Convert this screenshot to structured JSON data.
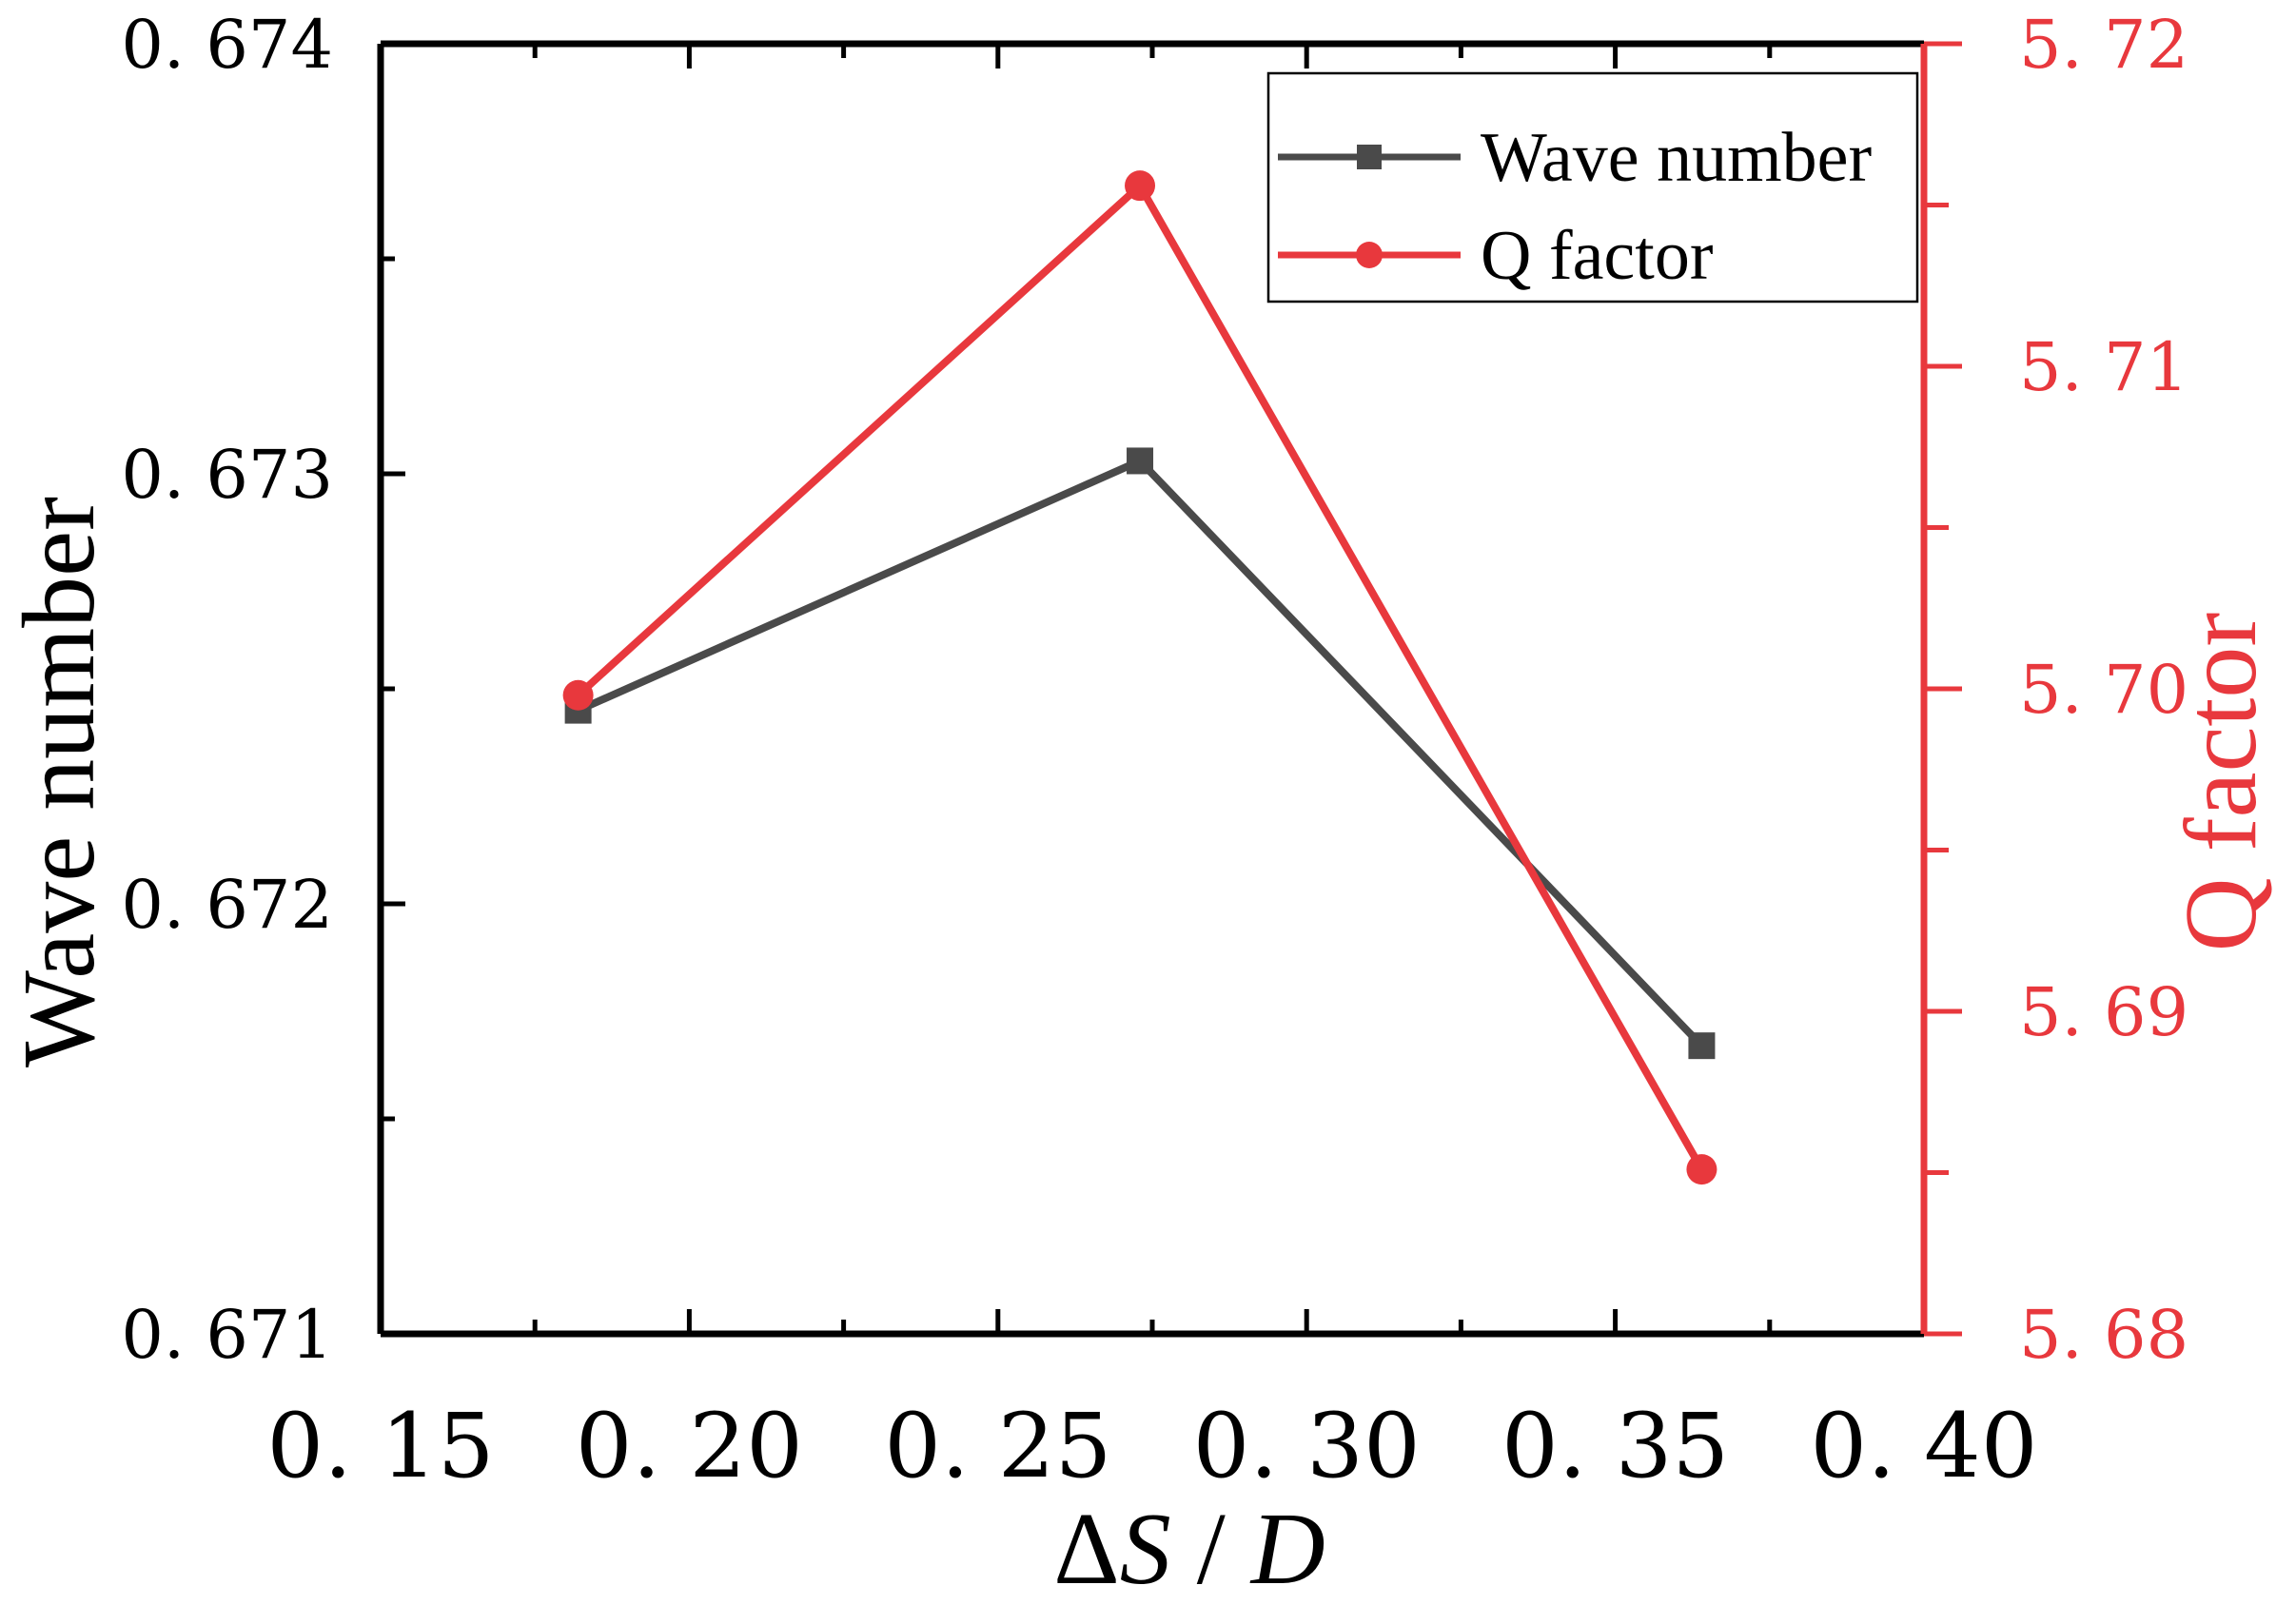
{
  "chart_data": {
    "type": "line",
    "x": [
      0.182,
      0.273,
      0.364
    ],
    "xlim": [
      0.15,
      0.4
    ],
    "xticks": [
      "0.15",
      "0.20",
      "0.25",
      "0.30",
      "0.35",
      "0.40"
    ],
    "xlabel": {
      "delta": "Δ",
      "s": "S",
      "sep": " / ",
      "d": "D"
    },
    "y_left": {
      "label": "Wave number",
      "lim": [
        0.671,
        0.674
      ],
      "ticks": [
        "0.671",
        "0.672",
        "0.673",
        "0.674"
      ]
    },
    "y_right": {
      "label": "Q factor",
      "lim": [
        5.68,
        5.72
      ],
      "ticks": [
        "5.68",
        "5.69",
        "5.70",
        "5.71",
        "5.72"
      ]
    },
    "series": [
      {
        "name": "Wave number",
        "axis": "left",
        "marker": "square",
        "color": "#4a4a4a",
        "values": [
          0.67245,
          0.67303,
          0.67167
        ]
      },
      {
        "name": "Q factor",
        "axis": "right",
        "marker": "circle",
        "color": "#e8383d",
        "values": [
          5.6998,
          5.7156,
          5.6851
        ]
      }
    ],
    "legend": {
      "position": "top-right",
      "entries": [
        "Wave number",
        "Q factor"
      ]
    },
    "colors": {
      "left_axis": "#000000",
      "right_axis": "#e8383d"
    }
  }
}
